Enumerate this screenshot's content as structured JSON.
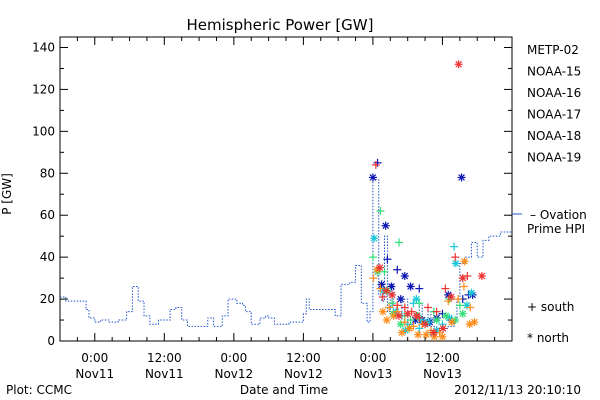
{
  "footer": {
    "source": "Plot: CCMC",
    "timestamp": "2012/11/13 20:10:10"
  },
  "chart_data": {
    "type": "scatter",
    "title": "Hemispheric Power [GW]",
    "xlabel": "Date and Time",
    "ylabel": "P [GW]",
    "x_unit": "hours since 2012-11-10 18:00 UT",
    "xlim": [
      0,
      78
    ],
    "ylim": [
      0,
      145
    ],
    "yticks": [
      0,
      20,
      40,
      60,
      80,
      100,
      120,
      140
    ],
    "xticks": [
      {
        "x": 6,
        "time": "0:00",
        "date": "Nov11"
      },
      {
        "x": 18,
        "time": "12:00",
        "date": "Nov11"
      },
      {
        "x": 30,
        "time": "0:00",
        "date": "Nov12"
      },
      {
        "x": 42,
        "time": "12:00",
        "date": "Nov12"
      },
      {
        "x": 54,
        "time": "0:00",
        "date": "Nov13"
      },
      {
        "x": 66,
        "time": "12:00",
        "date": "Nov13"
      }
    ],
    "marker_legend": {
      "south": "+ south",
      "north": "* north"
    },
    "series": [
      {
        "name": "Ovation Prime HPI",
        "legend_label": "– Ovation",
        "legend_label2": "Prime HPI",
        "color": "#2255cc",
        "kind": "step",
        "points": [
          [
            0,
            21
          ],
          [
            1,
            19
          ],
          [
            3,
            19
          ],
          [
            4.5,
            15
          ],
          [
            5,
            11
          ],
          [
            6,
            9
          ],
          [
            7,
            10
          ],
          [
            8.5,
            9
          ],
          [
            10,
            10
          ],
          [
            11.5,
            14
          ],
          [
            12.5,
            26
          ],
          [
            13.5,
            19
          ],
          [
            14.5,
            12
          ],
          [
            15.5,
            8
          ],
          [
            16.5,
            8
          ],
          [
            17,
            10
          ],
          [
            18,
            10
          ],
          [
            19,
            15
          ],
          [
            20,
            16
          ],
          [
            21,
            10
          ],
          [
            22,
            7
          ],
          [
            23.5,
            7
          ],
          [
            25,
            7
          ],
          [
            25.5,
            11
          ],
          [
            26.5,
            7
          ],
          [
            27.5,
            7
          ],
          [
            28,
            12
          ],
          [
            29,
            20
          ],
          [
            30.5,
            18
          ],
          [
            31.5,
            17
          ],
          [
            32,
            14
          ],
          [
            33,
            8
          ],
          [
            34.5,
            11
          ],
          [
            35.5,
            12
          ],
          [
            36,
            11
          ],
          [
            37,
            8
          ],
          [
            38.5,
            8
          ],
          [
            39.5,
            9
          ],
          [
            40.5,
            9
          ],
          [
            41.5,
            9
          ],
          [
            42,
            13
          ],
          [
            42.5,
            20
          ],
          [
            43,
            15
          ],
          [
            45,
            15
          ],
          [
            47,
            15
          ],
          [
            47.5,
            12
          ],
          [
            48.5,
            27
          ],
          [
            50,
            28
          ],
          [
            51,
            36
          ],
          [
            52,
            18
          ],
          [
            53,
            9
          ],
          [
            53.5,
            14
          ],
          [
            54,
            77
          ],
          [
            55,
            22
          ],
          [
            55.5,
            19
          ],
          [
            56,
            50
          ],
          [
            56.5,
            14
          ],
          [
            57,
            27
          ],
          [
            57.5,
            12
          ],
          [
            58.5,
            12
          ],
          [
            59,
            20
          ],
          [
            60,
            8
          ],
          [
            61,
            10
          ],
          [
            61.5,
            10
          ],
          [
            62,
            18
          ],
          [
            62.5,
            9
          ],
          [
            63,
            10
          ],
          [
            63.5,
            14
          ],
          [
            64,
            7
          ],
          [
            65,
            6
          ],
          [
            66.5,
            6
          ],
          [
            67,
            7
          ],
          [
            68,
            10
          ],
          [
            68.5,
            20
          ],
          [
            69,
            37
          ],
          [
            70,
            40
          ],
          [
            71,
            47
          ],
          [
            72,
            40
          ],
          [
            73,
            48
          ],
          [
            74,
            50
          ],
          [
            75,
            50
          ],
          [
            76,
            52
          ],
          [
            77,
            52
          ]
        ]
      },
      {
        "name": "METP-02",
        "color": "#000000",
        "kind": "markers",
        "south": [],
        "north": []
      },
      {
        "name": "NOAA-15",
        "color": "#0a14b0",
        "kind": "markers",
        "south": [
          [
            54.8,
            85
          ],
          [
            56.5,
            39
          ],
          [
            58.2,
            34
          ],
          [
            62,
            25
          ],
          [
            66,
            13
          ],
          [
            67.5,
            10
          ],
          [
            69.5,
            20
          ],
          [
            70.5,
            22
          ]
        ],
        "north": [
          [
            54,
            78
          ],
          [
            55.5,
            27
          ],
          [
            56.2,
            55
          ],
          [
            57.2,
            26
          ],
          [
            58.8,
            20
          ],
          [
            59.5,
            31
          ],
          [
            60.5,
            26
          ],
          [
            61.3,
            10
          ],
          [
            62.5,
            10
          ],
          [
            63.8,
            9
          ],
          [
            65,
            11
          ],
          [
            67,
            22
          ],
          [
            69.3,
            78
          ],
          [
            71.2,
            22
          ]
        ]
      },
      {
        "name": "NOAA-16",
        "color": "#18c8d8",
        "kind": "markers",
        "south": [
          [
            59,
            12
          ],
          [
            60,
            8
          ],
          [
            61,
            18
          ],
          [
            62,
            6
          ],
          [
            64,
            4
          ],
          [
            66,
            8
          ],
          [
            68,
            45
          ]
        ],
        "north": [
          [
            54.2,
            49
          ],
          [
            55.8,
            24
          ],
          [
            58,
            14
          ],
          [
            59.6,
            5
          ],
          [
            61.5,
            20
          ],
          [
            62.3,
            10
          ],
          [
            63.5,
            9
          ],
          [
            65,
            5
          ],
          [
            67.2,
            11
          ],
          [
            68.3,
            37
          ],
          [
            70.2,
            17
          ],
          [
            71,
            23
          ]
        ]
      },
      {
        "name": "NOAA-17",
        "color": "#33dd77",
        "kind": "markers",
        "south": [
          [
            54,
            40
          ],
          [
            55.3,
            62
          ],
          [
            56,
            33
          ],
          [
            57.3,
            18
          ],
          [
            58.5,
            47
          ],
          [
            59.5,
            12
          ],
          [
            60.5,
            10
          ],
          [
            62,
            18
          ],
          [
            64.5,
            14
          ],
          [
            67.2,
            20
          ],
          [
            69,
            17
          ]
        ],
        "north": [
          [
            54.8,
            33
          ],
          [
            56.5,
            24
          ],
          [
            57.5,
            13
          ],
          [
            58.8,
            8
          ],
          [
            60.3,
            6
          ],
          [
            61.7,
            12
          ],
          [
            63,
            8
          ],
          [
            65,
            10
          ],
          [
            66.6,
            12
          ],
          [
            68.2,
            10
          ],
          [
            69.5,
            13
          ]
        ]
      },
      {
        "name": "NOAA-18",
        "color": "#ff8c1a",
        "kind": "markers",
        "south": [
          [
            54.1,
            30
          ],
          [
            55.3,
            25
          ],
          [
            56.8,
            16
          ],
          [
            58.2,
            14
          ],
          [
            59.5,
            9
          ],
          [
            61,
            7
          ],
          [
            62.5,
            8
          ],
          [
            64,
            5
          ],
          [
            65.5,
            4
          ],
          [
            67,
            19
          ],
          [
            68.7,
            20
          ],
          [
            69.7,
            26
          ],
          [
            70.8,
            16
          ]
        ],
        "north": [
          [
            54.7,
            34
          ],
          [
            55.7,
            14
          ],
          [
            56.4,
            10
          ],
          [
            57.6,
            12
          ],
          [
            59,
            4
          ],
          [
            60.3,
            6
          ],
          [
            61.8,
            3
          ],
          [
            63.2,
            3
          ],
          [
            64.6,
            2
          ],
          [
            66,
            2
          ],
          [
            67.6,
            9
          ],
          [
            69.8,
            38
          ],
          [
            70.7,
            8
          ],
          [
            71.5,
            9
          ]
        ]
      },
      {
        "name": "NOAA-19",
        "color": "#ee3333",
        "kind": "markers",
        "south": [
          [
            54.5,
            84
          ],
          [
            55.7,
            21
          ],
          [
            58.2,
            17
          ],
          [
            59.5,
            16
          ],
          [
            60.7,
            14
          ],
          [
            62,
            11
          ],
          [
            63.5,
            16
          ],
          [
            65,
            14
          ],
          [
            66.5,
            25
          ],
          [
            68.2,
            40
          ],
          [
            70.3,
            31
          ]
        ],
        "north": [
          [
            55.2,
            35
          ],
          [
            56.3,
            24
          ],
          [
            57.3,
            22
          ],
          [
            58.5,
            12
          ],
          [
            60,
            13
          ],
          [
            61.5,
            12
          ],
          [
            63,
            8
          ],
          [
            64.5,
            4
          ],
          [
            66.1,
            6
          ],
          [
            67.5,
            21
          ],
          [
            68.8,
            132
          ],
          [
            69.5,
            30
          ],
          [
            72.8,
            31
          ]
        ]
      }
    ]
  }
}
